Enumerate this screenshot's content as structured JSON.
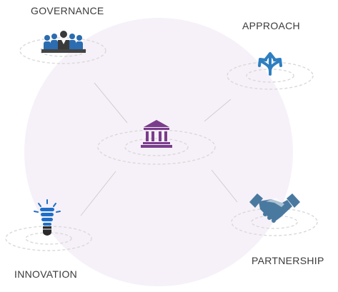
{
  "diagram": {
    "nodes": [
      {
        "id": "governance",
        "label": "GOVERNANCE",
        "icon": "team-meeting-icon",
        "color": "#1f5fa8"
      },
      {
        "id": "approach",
        "label": "APPROACH",
        "icon": "split-arrows-icon",
        "color": "#2e7fc0"
      },
      {
        "id": "center",
        "label": "",
        "icon": "institution-building-icon",
        "color": "#7a3d8c"
      },
      {
        "id": "innovation",
        "label": "INNOVATION",
        "icon": "lightbulb-icon",
        "color": "#1e6ec8"
      },
      {
        "id": "partnership",
        "label": "PARTNERSHIP",
        "icon": "handshake-icon",
        "color": "#4a79a0"
      }
    ],
    "edges": [
      {
        "from": "center",
        "to": "governance"
      },
      {
        "from": "center",
        "to": "approach"
      },
      {
        "from": "center",
        "to": "innovation"
      },
      {
        "from": "center",
        "to": "partnership"
      }
    ],
    "colors": {
      "background_disc": "#f6f1f8",
      "ring": "#d9d9d9",
      "connector": "#cfcfcf",
      "text": "#3a3a3a"
    }
  }
}
